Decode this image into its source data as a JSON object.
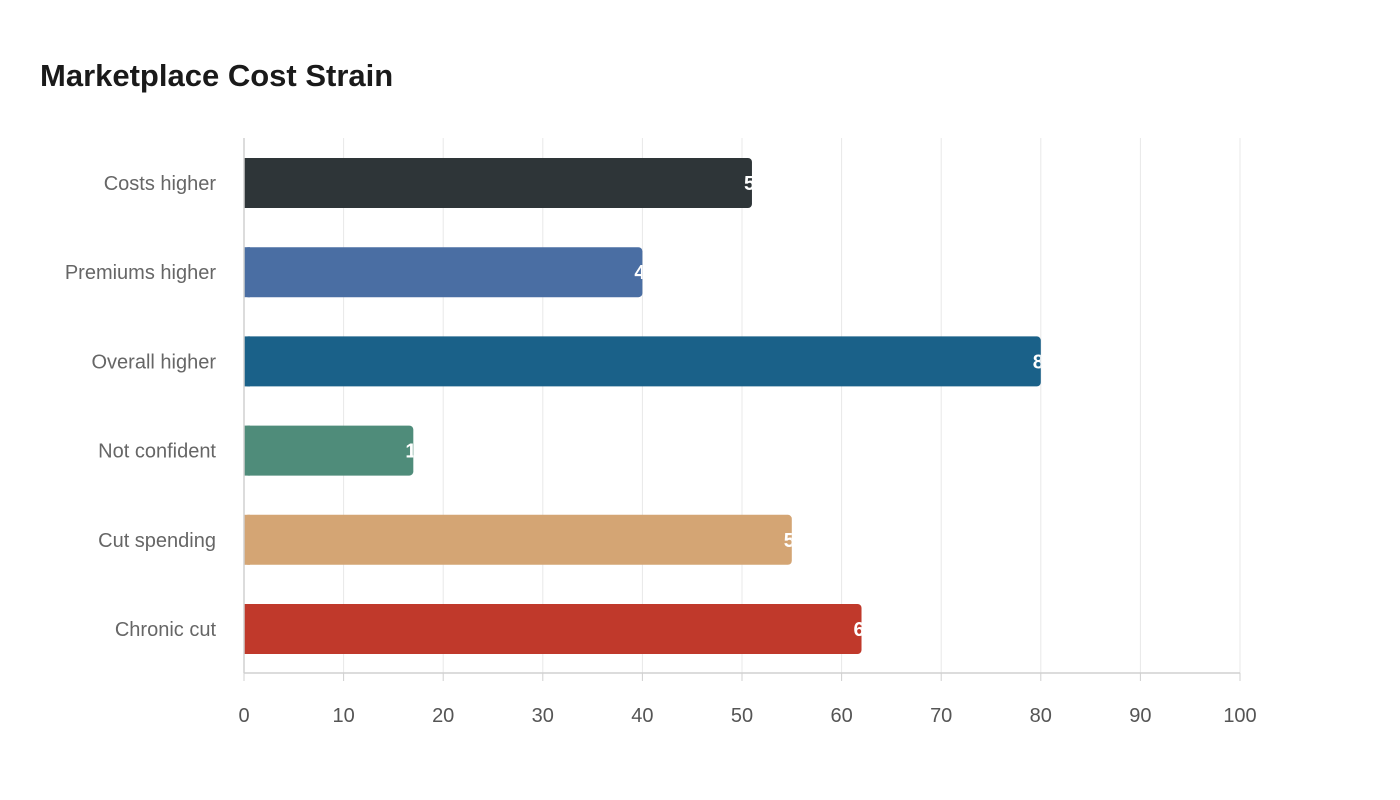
{
  "chart_data": {
    "type": "bar",
    "orientation": "horizontal",
    "title": "Marketplace Cost Strain",
    "xlabel": "",
    "ylabel": "",
    "xlim": [
      0,
      100
    ],
    "x_ticks": [
      0,
      10,
      20,
      30,
      40,
      50,
      60,
      70,
      80,
      90,
      100
    ],
    "grid": true,
    "categories": [
      "Costs higher",
      "Premiums higher",
      "Overall higher",
      "Not confident",
      "Cut spending",
      "Chronic cut"
    ],
    "values": [
      51,
      40,
      80,
      17,
      55,
      62
    ],
    "colors": [
      "#2e3538",
      "#4a6ea3",
      "#1a6189",
      "#4f8c7a",
      "#d4a574",
      "#c0392b"
    ]
  }
}
